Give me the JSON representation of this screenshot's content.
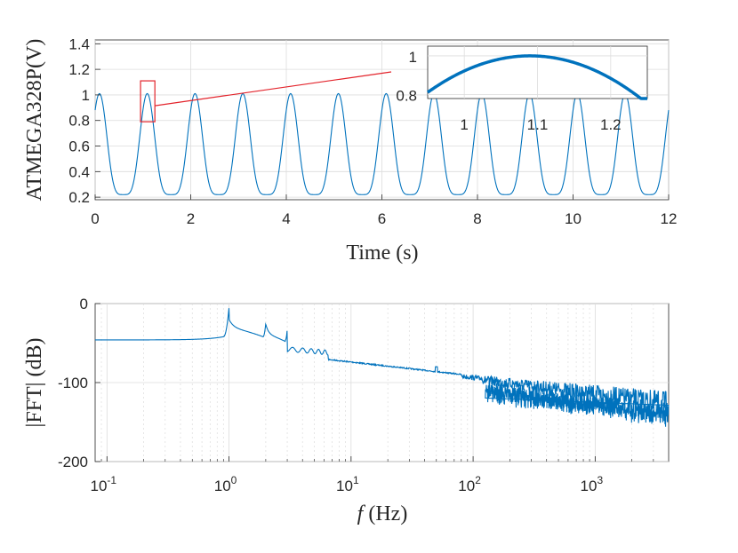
{
  "chart_data": [
    {
      "type": "line",
      "ylabel": "ATMEGA328P(V)",
      "xlabel": "Time (s)",
      "xlim": [
        0,
        12
      ],
      "ylim": [
        0.18,
        1.43
      ],
      "xticks": [
        "0",
        "2",
        "4",
        "6",
        "8",
        "10",
        "12"
      ],
      "yticks": [
        "0.2",
        "0.4",
        "0.6",
        "0.8",
        "1",
        "1.2",
        "1.4"
      ],
      "grid": true,
      "series": [
        {
          "signal": "periodic",
          "period_s": 1.0,
          "min_v": 0.22,
          "max_v": 1.01,
          "x_start": 0,
          "x_end": 12
        }
      ],
      "zoom_box": {
        "x": [
          0.95,
          1.25
        ],
        "y": [
          0.79,
          1.11
        ]
      },
      "inset": {
        "xlim": [
          0.95,
          1.25
        ],
        "ylim": [
          0.78,
          1.05
        ],
        "xticks": [
          "1",
          "1.1",
          "1.2"
        ],
        "yticks": [
          "0.8",
          "1"
        ],
        "peak": {
          "x": 1.09,
          "y": 1.0
        }
      }
    },
    {
      "type": "line",
      "ylabel": "|FFT| (dB)",
      "xlabel_italic": "f",
      "xlabel_rest": " (Hz)",
      "xscale": "log",
      "xlim": [
        0.08,
        4000
      ],
      "ylim": [
        -200,
        0
      ],
      "yticks": [
        "0",
        "-100",
        "-200"
      ],
      "xticks": [
        {
          "base": "10",
          "exp": "-1"
        },
        {
          "base": "10",
          "exp": "0"
        },
        {
          "base": "10",
          "exp": "1"
        },
        {
          "base": "10",
          "exp": "2"
        },
        {
          "base": "10",
          "exp": "3"
        }
      ],
      "grid": true,
      "features": {
        "floor_low_db": -46,
        "fundamental_hz": 1,
        "fundamental_db": -5,
        "harmonics": [
          {
            "f": 2,
            "db": -25
          },
          {
            "f": 3,
            "db": -32
          }
        ],
        "mains_spike": {
          "f": 50,
          "db": -80
        },
        "spike_100": {
          "f": 100,
          "db": -98
        },
        "noise_floor_high_db": -128
      }
    }
  ]
}
